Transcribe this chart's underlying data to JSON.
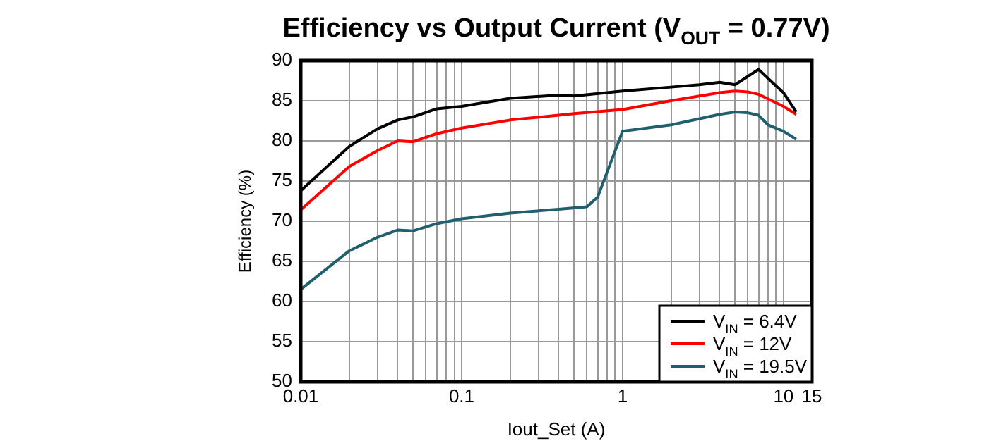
{
  "chart_data": {
    "type": "line",
    "title": "Efficiency vs Output Current (V$_{OUT}$ = 0.77V)",
    "xlabel": "Iout_Set (A)",
    "ylabel": "Efficiency (%)",
    "log": "x",
    "xlim": [
      0.01,
      15
    ],
    "xticks": [
      0.01,
      {
        "value": 0.02,
        "label": null
      },
      {
        "value": 0.03,
        "label": null
      },
      {
        "value": 0.04,
        "label": null
      },
      {
        "value": 0.05,
        "label": null
      },
      {
        "value": 0.06,
        "label": null
      },
      {
        "value": 0.07,
        "label": null
      },
      {
        "value": 0.08,
        "label": null
      },
      {
        "value": 0.09,
        "label": null
      },
      0.1,
      {
        "value": 0.2,
        "label": null
      },
      {
        "value": 0.3,
        "label": null
      },
      {
        "value": 0.4,
        "label": null
      },
      {
        "value": 0.5,
        "label": null
      },
      {
        "value": 0.6,
        "label": null
      },
      {
        "value": 0.7,
        "label": null
      },
      {
        "value": 0.8,
        "label": null
      },
      {
        "value": 0.9,
        "label": null
      },
      1,
      {
        "value": 2,
        "label": null
      },
      {
        "value": 3,
        "label": null
      },
      {
        "value": 4,
        "label": null
      },
      {
        "value": 5,
        "label": null
      },
      {
        "value": 6,
        "label": null
      },
      {
        "value": 7,
        "label": null
      },
      {
        "value": 8,
        "label": null
      },
      {
        "value": 9,
        "label": null
      },
      10,
      15
    ],
    "ylim": [
      50,
      90
    ],
    "yticks": [
      50,
      55,
      60,
      65,
      70,
      75,
      80,
      85,
      90
    ],
    "grid": true,
    "legend": "bottom right",
    "marker": "none",
    "line_style": "solid",
    "series": [
      {
        "name": "V$_{IN}$ = 6.4V",
        "color": "#000000",
        "x": [
          0.01,
          0.02,
          0.03,
          0.04,
          0.05,
          0.07,
          0.1,
          0.2,
          0.4,
          0.5,
          1,
          2,
          3,
          4,
          5,
          7,
          8.5,
          10,
          12
        ],
        "values": [
          73.8,
          79.3,
          81.5,
          82.6,
          83.0,
          84.0,
          84.3,
          85.3,
          85.7,
          85.6,
          86.2,
          86.7,
          87.0,
          87.3,
          87.0,
          88.9,
          87.3,
          86.0,
          83.6
        ]
      },
      {
        "name": "V$_{IN}$ = 12V",
        "color": "#ff0000",
        "x": [
          0.01,
          0.02,
          0.03,
          0.04,
          0.05,
          0.07,
          0.1,
          0.2,
          0.5,
          1,
          2,
          4,
          5,
          6,
          7,
          10,
          12
        ],
        "values": [
          71.4,
          76.8,
          78.8,
          80.0,
          79.9,
          80.9,
          81.6,
          82.6,
          83.4,
          83.9,
          85.0,
          86.0,
          86.2,
          86.1,
          85.8,
          84.3,
          83.3
        ]
      },
      {
        "name": "V$_{IN}$ = 19.5V",
        "color": "#1f5f6e",
        "x": [
          0.01,
          0.02,
          0.03,
          0.04,
          0.05,
          0.07,
          0.1,
          0.2,
          0.4,
          0.6,
          0.7,
          1,
          2,
          4,
          5,
          6,
          7,
          8,
          10,
          12
        ],
        "values": [
          61.5,
          66.3,
          68.0,
          68.9,
          68.8,
          69.7,
          70.3,
          71.0,
          71.5,
          71.8,
          73.0,
          81.2,
          82.0,
          83.3,
          83.6,
          83.5,
          83.2,
          82.0,
          81.2,
          80.2
        ]
      }
    ]
  }
}
